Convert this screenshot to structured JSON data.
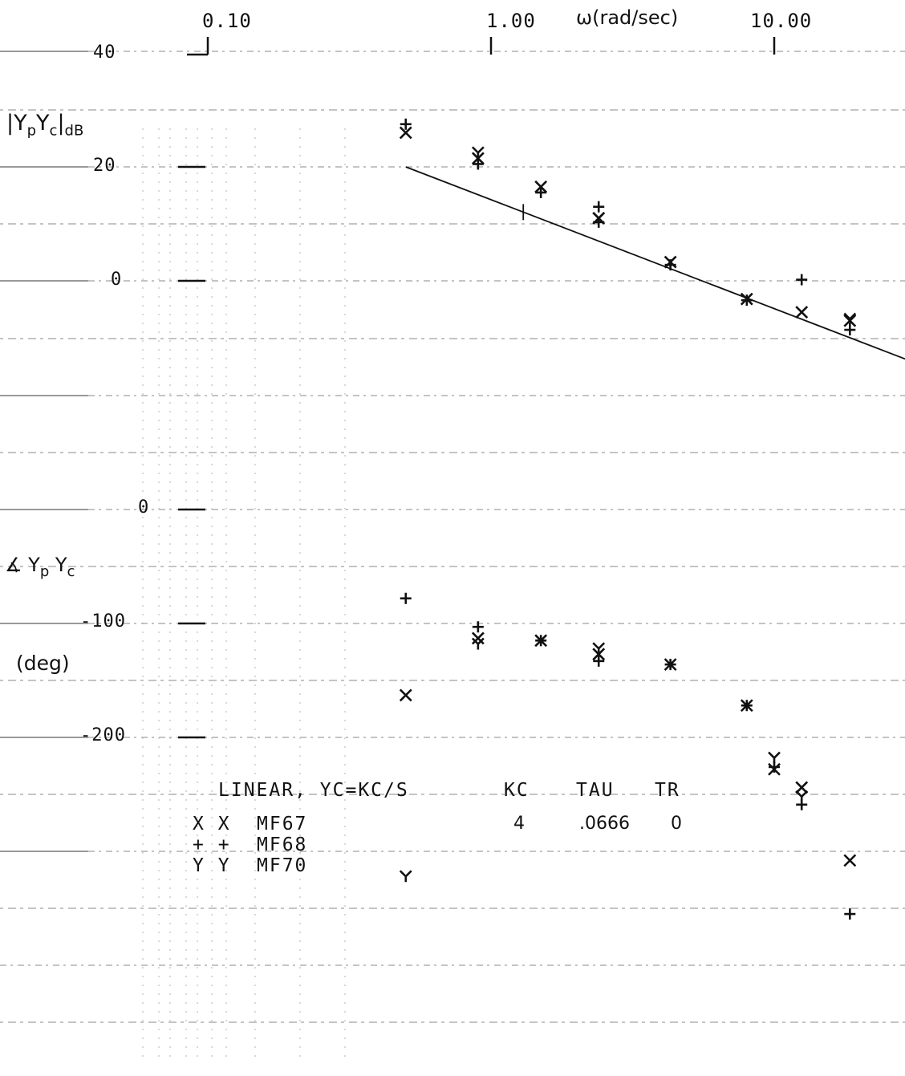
{
  "chart_data": {
    "type": "scatter",
    "x_axis": {
      "scale": "log",
      "range": [
        0.055,
        30
      ],
      "tick_labels": [
        "0.10",
        "1.00",
        "10.00"
      ],
      "tick_values": [
        0.1,
        1.0,
        10.0
      ],
      "label": "ω(rad/sec)"
    },
    "magnitude_panel": {
      "ylabel_main": "|Y",
      "ylabel_sub1": "p",
      "ylabel_mid": "Y",
      "ylabel_sub2": "c",
      "ylabel_end": "|",
      "ylabel_unit": "dB",
      "ylim": [
        -40,
        40
      ],
      "tick_labels": [
        "40",
        "20",
        "0"
      ],
      "tick_values": [
        40,
        20,
        0
      ],
      "fit_line": {
        "x": [
          0.5,
          30
        ],
        "y": [
          20,
          -14
        ]
      },
      "fit_tick_x": 1.3
    },
    "phase_panel": {
      "ylabel": "∡ Y",
      "ylabel_sub1": "p",
      "ylabel_mid": " Y",
      "ylabel_sub2": "c",
      "ylabel_unit": "(deg)",
      "ylim": [
        -400,
        0
      ],
      "tick_labels": [
        "0",
        "-100",
        "-200"
      ],
      "tick_values": [
        0,
        -100,
        -200
      ]
    },
    "legend": {
      "header": "LINEAR, YC=KC/S",
      "columns": [
        "KC",
        "TAU",
        "TR"
      ],
      "entries": [
        {
          "symbol": "X X",
          "name": "MF67",
          "kc": "4",
          "tau": ".0666",
          "tr": "0"
        },
        {
          "symbol": "+ +",
          "name": "MF68",
          "kc": "",
          "tau": "",
          "tr": ""
        },
        {
          "symbol": "Y Y",
          "name": "MF70",
          "kc": "",
          "tau": "",
          "tr": ""
        }
      ]
    },
    "series": [
      {
        "name": "MF67",
        "marker": "x",
        "magnitude": {
          "x": [
            0.5,
            0.9,
            1.5,
            2.4,
            4.3,
            8.0,
            12.5,
            18.5
          ],
          "y": [
            26,
            21.5,
            16.5,
            11.0,
            3.3,
            -3.2,
            -5.5,
            -7.0
          ]
        },
        "phase": {
          "x": [
            0.5,
            0.9,
            1.5,
            2.4,
            4.3,
            8.0,
            10.0,
            12.5,
            18.5
          ],
          "y": [
            -163,
            -113,
            -115,
            -127,
            -136,
            -172,
            -228,
            -244,
            -308
          ]
        }
      },
      {
        "name": "MF68",
        "marker": "+",
        "magnitude": {
          "x": [
            0.5,
            0.9,
            1.5,
            2.4,
            2.4,
            4.3,
            8.0,
            12.5,
            18.5
          ],
          "y": [
            27.5,
            20.5,
            15.5,
            13.0,
            10.3,
            2.8,
            -3.4,
            0.2,
            -8.6
          ]
        },
        "phase": {
          "x": [
            0.5,
            0.9,
            1.5,
            2.4,
            4.3,
            8.0,
            10.0,
            12.5,
            18.5
          ],
          "y": [
            -78,
            -103,
            -115,
            -133,
            -136,
            -172,
            -226,
            -259,
            -355
          ]
        }
      },
      {
        "name": "MF70",
        "marker": "Y",
        "magnitude": {
          "x": [
            0.9,
            2.4,
            18.5
          ],
          "y": [
            22.5,
            11.0,
            -6.7
          ]
        },
        "phase": {
          "x": [
            0.5,
            0.9,
            2.4,
            10.0,
            12.5
          ],
          "y": [
            -322,
            -118,
            -122,
            -218,
            -252
          ]
        }
      }
    ]
  }
}
